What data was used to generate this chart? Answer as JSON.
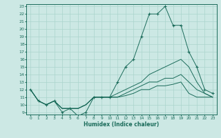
{
  "title": "",
  "xlabel": "Humidex (Indice chaleur)",
  "ylabel": "",
  "background_color": "#cce8e4",
  "grid_color": "#aad4cc",
  "line_color": "#1a6b5a",
  "xlim_min": -0.5,
  "xlim_max": 23.5,
  "ylim_min": 8.7,
  "ylim_max": 23.3,
  "yticks": [
    9,
    10,
    11,
    12,
    13,
    14,
    15,
    16,
    17,
    18,
    19,
    20,
    21,
    22,
    23
  ],
  "xticks": [
    0,
    1,
    2,
    3,
    4,
    5,
    6,
    7,
    8,
    9,
    10,
    11,
    12,
    13,
    14,
    15,
    16,
    17,
    18,
    19,
    20,
    21,
    22,
    23
  ],
  "series": [
    {
      "x": [
        0,
        1,
        2,
        3,
        4,
        5,
        6,
        7,
        8,
        9,
        10,
        11,
        12,
        13,
        14,
        15,
        16,
        17,
        18,
        19,
        20,
        21,
        22,
        23
      ],
      "y": [
        12,
        10.5,
        10,
        10.5,
        9.0,
        9.5,
        8.5,
        9.0,
        11,
        11,
        11,
        13,
        15,
        16,
        19,
        22,
        22,
        23,
        20.5,
        20.5,
        17,
        15,
        12,
        11.5
      ],
      "marker": "+"
    },
    {
      "x": [
        0,
        1,
        2,
        3,
        4,
        5,
        6,
        7,
        8,
        9,
        10,
        11,
        12,
        13,
        14,
        15,
        16,
        17,
        18,
        19,
        20,
        21,
        22,
        23
      ],
      "y": [
        12,
        10.5,
        10,
        10.5,
        9.5,
        9.5,
        9.5,
        10,
        11,
        11,
        11,
        11.5,
        12,
        12.5,
        13,
        14,
        14.5,
        15,
        15.5,
        16,
        15,
        13,
        11.5,
        11
      ],
      "marker": null
    },
    {
      "x": [
        0,
        1,
        2,
        3,
        4,
        5,
        6,
        7,
        8,
        9,
        10,
        11,
        12,
        13,
        14,
        15,
        16,
        17,
        18,
        19,
        20,
        21,
        22,
        23
      ],
      "y": [
        12,
        10.5,
        10,
        10.5,
        9.5,
        9.5,
        9.5,
        10,
        11,
        11,
        11,
        11,
        11.5,
        12,
        12.5,
        13,
        13,
        13.5,
        13.5,
        14,
        13,
        12,
        11.5,
        11
      ],
      "marker": null
    },
    {
      "x": [
        0,
        1,
        2,
        3,
        4,
        5,
        6,
        7,
        8,
        9,
        10,
        11,
        12,
        13,
        14,
        15,
        16,
        17,
        18,
        19,
        20,
        21,
        22,
        23
      ],
      "y": [
        12,
        10.5,
        10,
        10.5,
        9.5,
        9.5,
        9.5,
        10,
        11,
        11,
        11,
        11,
        11.2,
        11.5,
        12,
        12,
        12.5,
        12.5,
        12.7,
        13,
        11.5,
        11,
        11,
        11
      ],
      "marker": null
    }
  ]
}
